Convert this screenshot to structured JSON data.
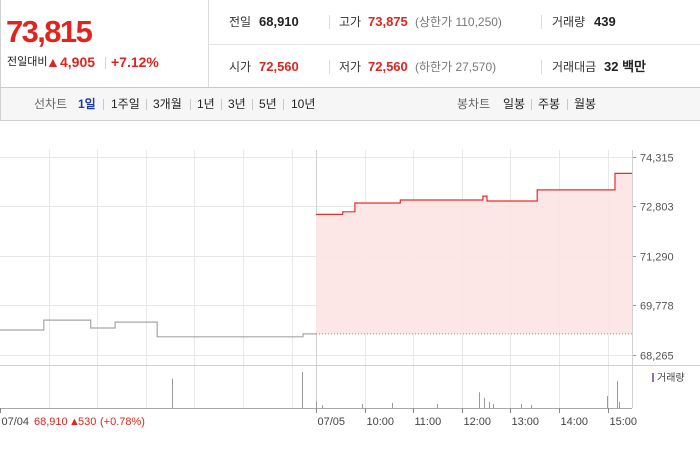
{
  "colors": {
    "up": "#e0241f",
    "selected_tab": "#1c3d9e",
    "grid": "#e8e8e8",
    "baseline": "#e06a6a",
    "volume_bar": "#9a9a9a",
    "volume_legend": "#8e72b5"
  },
  "quote": {
    "price": "73,815",
    "change_label": "전일대비",
    "change_arrow": "▲",
    "change_value": "4,905",
    "change_rate": "+7.12%"
  },
  "stats": {
    "prev_label": "전일",
    "prev_value": "68,910",
    "high_label": "고가",
    "high_value": "73,875",
    "upper_limit": "(상한가 110,250)",
    "volume_label": "거래량",
    "volume_value": "439",
    "open_label": "시가",
    "open_value": "72,560",
    "low_label": "저가",
    "low_value": "72,560",
    "lower_limit": "(하한가 27,570)",
    "amount_label": "거래대금",
    "amount_value": "32 백만"
  },
  "tabs": {
    "line_label": "선차트",
    "line_periods": [
      "1일",
      "1주일",
      "3개월",
      "1년",
      "3년",
      "5년",
      "10년"
    ],
    "line_selected_index": 0,
    "candle_label": "봉차트",
    "candle_periods": [
      "일봉",
      "주봉",
      "월봉"
    ]
  },
  "chart_data": {
    "type": "line",
    "step": true,
    "grid": true,
    "xlim": [
      "07/04 09:00",
      "07/05 15:30"
    ],
    "ylim": [
      68265,
      74315
    ],
    "y_ticks": [
      {
        "value": 74315,
        "label": "74,315"
      },
      {
        "value": 72803,
        "label": "72,803"
      },
      {
        "value": 71290,
        "label": "71,290"
      },
      {
        "value": 69778,
        "label": "69,778"
      },
      {
        "value": 68265,
        "label": "68,265"
      }
    ],
    "x_ticks": [
      {
        "t": "07/04 09:00",
        "label": "07/04"
      },
      {
        "t": "07/05 09:00",
        "label": "07/05"
      },
      {
        "t": "07/05 10:00",
        "label": "10:00"
      },
      {
        "t": "07/05 11:00",
        "label": "11:00"
      },
      {
        "t": "07/05 12:00",
        "label": "12:00"
      },
      {
        "t": "07/05 13:00",
        "label": "13:00"
      },
      {
        "t": "07/05 14:00",
        "label": "14:00"
      },
      {
        "t": "07/05 15:00",
        "label": "15:00"
      }
    ],
    "baseline": 68910,
    "series": [
      {
        "color": "#a6a6a6",
        "points": [
          [
            "07/04 09:00",
            69030
          ],
          [
            "07/04 09:54",
            69330
          ],
          [
            "07/04 10:52",
            69090
          ],
          [
            "07/04 11:22",
            69270
          ],
          [
            "07/04 12:14",
            68820
          ],
          [
            "07/04 15:14",
            68910
          ],
          [
            "07/04 15:30",
            68910
          ]
        ]
      },
      {
        "color": "#e2302f",
        "fill": "#fde3e3",
        "points": [
          [
            "07/05 09:00",
            72560
          ],
          [
            "07/05 09:33",
            72640
          ],
          [
            "07/05 09:48",
            72910
          ],
          [
            "07/05 10:44",
            73000
          ],
          [
            "07/05 12:26",
            73120
          ],
          [
            "07/05 12:31",
            72970
          ],
          [
            "07/05 13:33",
            73310
          ],
          [
            "07/05 15:09",
            73815
          ],
          [
            "07/05 15:30",
            73815
          ]
        ]
      }
    ],
    "volume_legend": "거래량",
    "volume": [
      {
        "t": "07/04 12:32",
        "rel": 0.81
      },
      {
        "t": "07/04 15:13",
        "rel": 1.0
      },
      {
        "t": "07/05 09:00",
        "rel": 0.19
      },
      {
        "t": "07/05 09:07",
        "rel": 0.08
      },
      {
        "t": "07/05 09:57",
        "rel": 0.11
      },
      {
        "t": "07/05 10:34",
        "rel": 0.14
      },
      {
        "t": "07/05 11:29",
        "rel": 0.11
      },
      {
        "t": "07/05 12:21",
        "rel": 0.44
      },
      {
        "t": "07/05 12:27",
        "rel": 0.28
      },
      {
        "t": "07/05 12:34",
        "rel": 0.17
      },
      {
        "t": "07/05 12:38",
        "rel": 0.11
      },
      {
        "t": "07/05 13:13",
        "rel": 0.11
      },
      {
        "t": "07/05 13:25",
        "rel": 0.08
      },
      {
        "t": "07/05 14:59",
        "rel": 0.33
      },
      {
        "t": "07/05 15:11",
        "rel": 0.75
      },
      {
        "t": "07/05 15:14",
        "rel": 0.17
      }
    ],
    "prev_day_annotation": {
      "close": "68,910",
      "arrow": "▲",
      "change": "530",
      "rate": "(+0.78%)"
    }
  }
}
